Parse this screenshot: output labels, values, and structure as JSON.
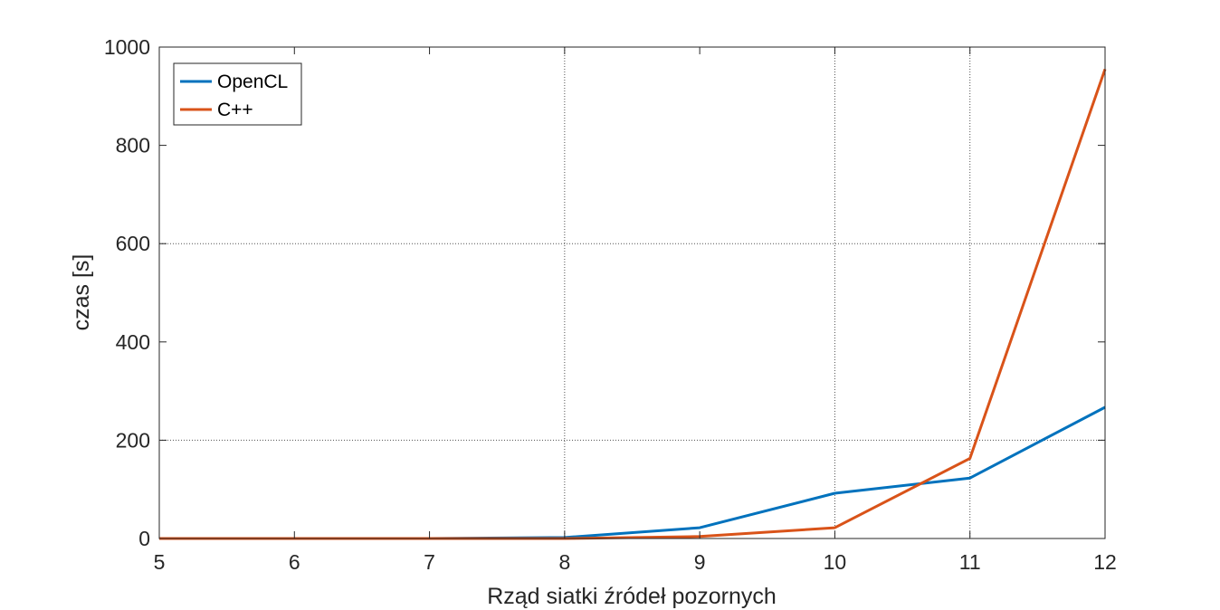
{
  "chart_data": {
    "type": "line",
    "title": "",
    "xlabel": "Rząd siatki źródeł pozornych",
    "ylabel": "czas [s]",
    "xlim": [
      5,
      12
    ],
    "ylim": [
      0,
      1000
    ],
    "x_ticks": [
      5,
      6,
      7,
      8,
      9,
      10,
      11,
      12
    ],
    "y_ticks": [
      0,
      200,
      400,
      600,
      800,
      1000
    ],
    "x_gridlines": [
      8,
      10,
      11
    ],
    "y_gridlines": [
      200,
      600
    ],
    "grid": "partial",
    "legend_position": "top-left",
    "x": [
      5,
      6,
      7,
      8,
      9,
      10,
      11,
      12
    ],
    "series": [
      {
        "name": "OpenCL",
        "color": "#0072BD",
        "values": [
          0,
          0,
          0,
          2,
          22,
          92,
          123,
          267
        ]
      },
      {
        "name": "C++",
        "color": "#D95319",
        "values": [
          0,
          0,
          0,
          0,
          4,
          22,
          163,
          955
        ]
      }
    ]
  }
}
